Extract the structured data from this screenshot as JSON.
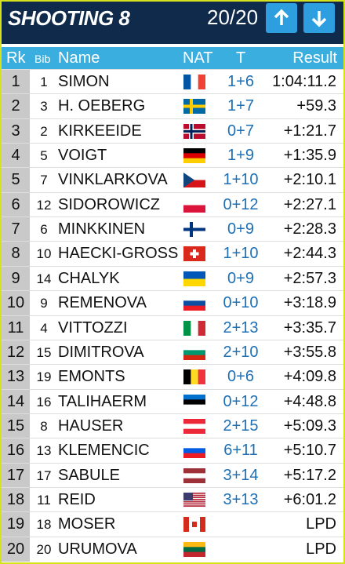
{
  "header": {
    "title": "SHOOTING 8",
    "progress": "20/20"
  },
  "columns": {
    "rank": "Rk",
    "bib": "Bib",
    "name": "Name",
    "nat": "NAT",
    "shooting": "T",
    "result": "Result"
  },
  "rows": [
    {
      "rank": 1,
      "bib": 1,
      "name": "SIMON",
      "shooting": "1+6",
      "result": "1:04:11.2"
    },
    {
      "rank": 2,
      "bib": 3,
      "name": "H. OEBERG",
      "shooting": "1+7",
      "result": "+59.3"
    },
    {
      "rank": 3,
      "bib": 2,
      "name": "KIRKEEIDE",
      "shooting": "0+7",
      "result": "+1:21.7"
    },
    {
      "rank": 4,
      "bib": 5,
      "name": "VOIGT",
      "shooting": "1+9",
      "result": "+1:35.9"
    },
    {
      "rank": 5,
      "bib": 7,
      "name": "VINKLARKOVA",
      "shooting": "1+10",
      "result": "+2:10.1"
    },
    {
      "rank": 6,
      "bib": 12,
      "name": "SIDOROWICZ",
      "shooting": "0+12",
      "result": "+2:27.1"
    },
    {
      "rank": 7,
      "bib": 6,
      "name": "MINKKINEN",
      "shooting": "0+9",
      "result": "+2:28.3"
    },
    {
      "rank": 8,
      "bib": 10,
      "name": "HAECKI-GROSS",
      "shooting": "1+10",
      "result": "+2:44.3"
    },
    {
      "rank": 9,
      "bib": 14,
      "name": "CHALYK",
      "shooting": "0+9",
      "result": "+2:57.3"
    },
    {
      "rank": 10,
      "bib": 9,
      "name": "REMENOVA",
      "shooting": "0+10",
      "result": "+3:18.9"
    },
    {
      "rank": 11,
      "bib": 4,
      "name": "VITTOZZI",
      "shooting": "2+13",
      "result": "+3:35.7"
    },
    {
      "rank": 12,
      "bib": 15,
      "name": "DIMITROVA",
      "shooting": "2+10",
      "result": "+3:55.8"
    },
    {
      "rank": 13,
      "bib": 19,
      "name": "EMONTS",
      "shooting": "0+6",
      "result": "+4:09.8"
    },
    {
      "rank": 14,
      "bib": 16,
      "name": "TALIHAERM",
      "shooting": "0+12",
      "result": "+4:48.8"
    },
    {
      "rank": 15,
      "bib": 8,
      "name": "HAUSER",
      "shooting": "2+15",
      "result": "+5:09.3"
    },
    {
      "rank": 16,
      "bib": 13,
      "name": "KLEMENCIC",
      "shooting": "6+11",
      "result": "+5:10.7"
    },
    {
      "rank": 17,
      "bib": 17,
      "name": "SABULE",
      "shooting": "3+14",
      "result": "+5:17.2"
    },
    {
      "rank": 18,
      "bib": 11,
      "name": "REID",
      "shooting": "3+13",
      "result": "+6:01.2"
    },
    {
      "rank": 19,
      "bib": 18,
      "name": "MOSER",
      "result": "LPD"
    },
    {
      "rank": 20,
      "bib": 20,
      "name": "URUMOVA",
      "result": "LPD"
    }
  ]
}
